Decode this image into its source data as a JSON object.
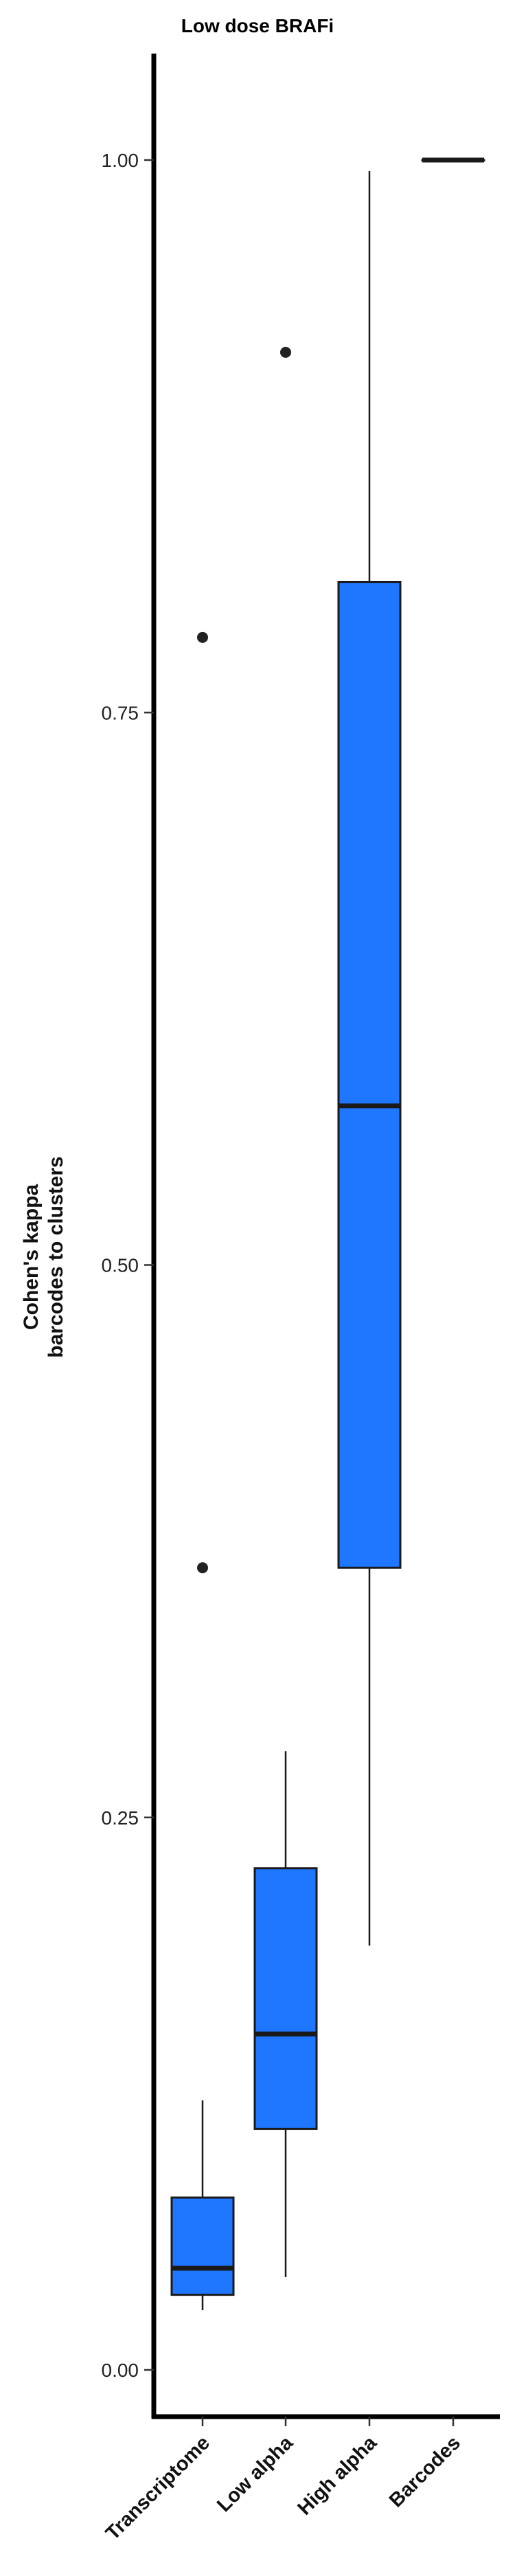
{
  "chart_data": {
    "type": "boxplot",
    "title": "Low dose BRAFi",
    "ylabel_lines": [
      "Cohen's kappa",
      "barcodes to clusters"
    ],
    "xlabel": "",
    "ylim": [
      -0.02,
      1.05
    ],
    "yticks": [
      0.0,
      0.25,
      0.5,
      0.75,
      1.0
    ],
    "ytick_labels": [
      "0.00",
      "0.25",
      "0.50",
      "0.75",
      "1.00"
    ],
    "categories": [
      "Transcriptome",
      "Low alpha",
      "High alpha",
      "Barcodes"
    ],
    "boxes": [
      {
        "category": "Transcriptome",
        "whisker_low": 0.027,
        "q1": 0.034,
        "median": 0.046,
        "q3": 0.078,
        "whisker_high": 0.122,
        "outliers": [
          0.363,
          0.784
        ]
      },
      {
        "category": "Low alpha",
        "whisker_low": 0.042,
        "q1": 0.109,
        "median": 0.152,
        "q3": 0.227,
        "whisker_high": 0.28,
        "outliers": [
          0.913
        ]
      },
      {
        "category": "High alpha",
        "whisker_low": 0.192,
        "q1": 0.363,
        "median": 0.572,
        "q3": 0.809,
        "whisker_high": 0.995,
        "outliers": []
      },
      {
        "category": "Barcodes",
        "whisker_low": 1.0,
        "q1": 1.0,
        "median": 1.0,
        "q3": 1.0,
        "whisker_high": 1.0,
        "outliers": []
      }
    ],
    "box_fill": "#1f77ff",
    "box_edge": "#1a1a1a",
    "grid": false,
    "legend": "none"
  }
}
